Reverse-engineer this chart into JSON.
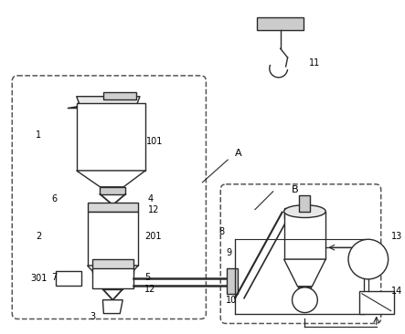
{
  "bg_color": "#ffffff",
  "line_color": "#2a2a2a",
  "dashed_color": "#555555",
  "fig_width": 4.43,
  "fig_height": 3.66,
  "dpi": 100
}
